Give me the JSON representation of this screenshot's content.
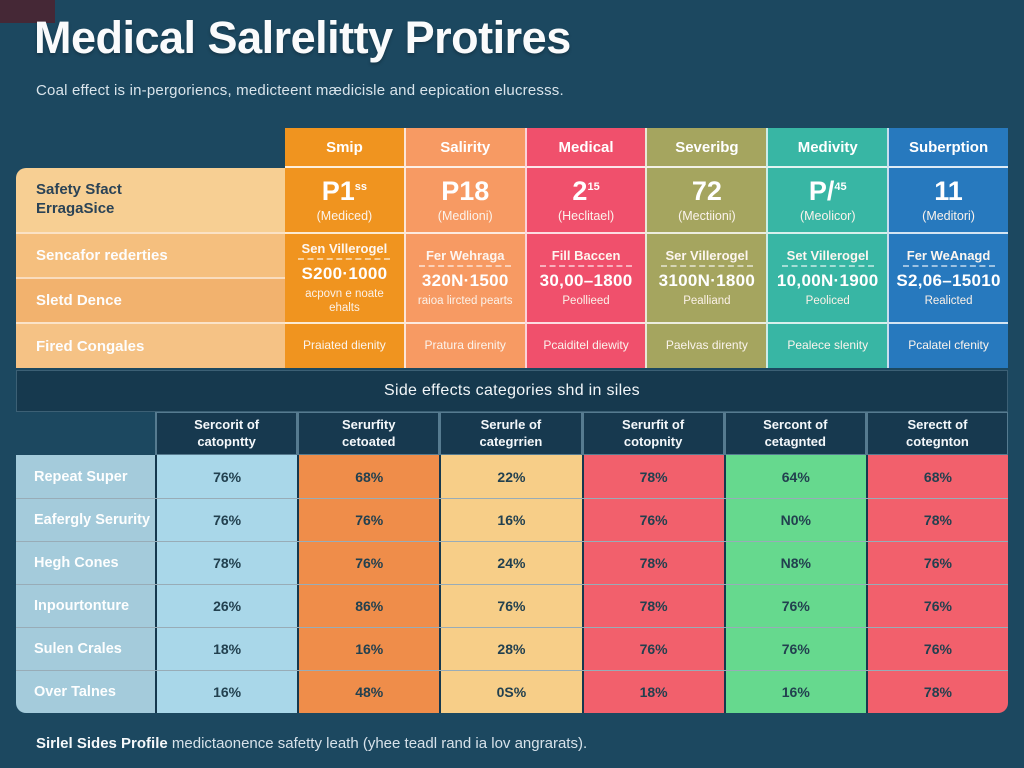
{
  "title": "Medical Salrelitty Protires",
  "subtitle": "Coal effect is in-pergoriencs, medicteent mædicisle and eepication elucresss.",
  "footer": {
    "bold": "Sirlel Sides Profile",
    "rest": " medictaonence safetty leath (yhee teadl rand ia lov angrarats)."
  },
  "colors": {
    "background": "#1C4860",
    "panel": "#15384E",
    "profile_columns": [
      "#F0941F",
      "#F79A63",
      "#F0506C",
      "#A5A55F",
      "#38B6A4",
      "#2779BE"
    ],
    "matrix_columns": [
      "#A9D7E9",
      "#EF8D4A",
      "#F7CE88",
      "#F2606C",
      "#66D98E",
      "#F2606C"
    ],
    "matrix_label_column": "#A4CBDB"
  },
  "profile_table": {
    "row_labels": [
      "Safety Sfact ErragaSice",
      "Sencafor rederties",
      "Sletd Dence",
      "Fired Congales"
    ],
    "columns": [
      {
        "header": "Smip",
        "value": "P1",
        "sup": "ss",
        "unit": "(Mediced)",
        "d_title": "Sen Villerogel",
        "d_value": "S200·1000",
        "d_note": "acpovn e noate ehalts",
        "f_note": "Praiated dienity"
      },
      {
        "header": "Salirity",
        "value": "P18",
        "sup": "",
        "unit": "(Medlioni)",
        "d_title": "Fer Wehraga",
        "d_value": "320N·1500",
        "d_note": "raioa lircted pearts",
        "f_note": "Pratura direnity"
      },
      {
        "header": "Medical",
        "value": "2",
        "sup": "15",
        "unit": "(Heclitael)",
        "d_title": "Fill Baccen",
        "d_value": "30,00–1800",
        "d_note": "Peollieed",
        "f_note": "Pcaiditel diewity"
      },
      {
        "header": "Severibg",
        "value": "72",
        "sup": "",
        "unit": "(Mectiioni)",
        "d_title": "Ser Villerogel",
        "d_value": "3100N·1800",
        "d_note": "Pealliand",
        "f_note": "Paelvas direnty"
      },
      {
        "header": "Medivity",
        "value": "P/",
        "sup": "45",
        "unit": "(Meolicor)",
        "d_title": "Set Villerogel",
        "d_value": "10,00N·1900",
        "d_note": "Peoliced",
        "f_note": "Pealece slenity"
      },
      {
        "header": "Suberption",
        "value": "11",
        "sup": "",
        "unit": "(Meditori)",
        "d_title": "Fer WeAnagd",
        "d_value": "S2,06–15010",
        "d_note": "Realicted",
        "f_note": "Pcalatel cfenity"
      }
    ]
  },
  "side_effects": {
    "band_title": "Side effects categories shd in siles",
    "headers": [
      {
        "l1": "Sercorit of",
        "l2": "catopntty"
      },
      {
        "l1": "Serurfity",
        "l2": "cetoated"
      },
      {
        "l1": "Serurle of",
        "l2": "categrrien"
      },
      {
        "l1": "Serurfit of",
        "l2": "cotopnity"
      },
      {
        "l1": "Sercont of",
        "l2": "cetagnted"
      },
      {
        "l1": "Serectt of",
        "l2": "cotegnton"
      }
    ],
    "rows": [
      {
        "label": "Repeat Super",
        "v0": "76%",
        "v1": "68%",
        "v2": "22%",
        "v3": "78%",
        "v4": "64%",
        "v5": "68%"
      },
      {
        "label": "Eafergly Serurity",
        "v0": "76%",
        "v1": "76%",
        "v2": "16%",
        "v3": "76%",
        "v4": "N0%",
        "v5": "78%"
      },
      {
        "label": "Hegh Cones",
        "v0": "78%",
        "v1": "76%",
        "v2": "24%",
        "v3": "78%",
        "v4": "N8%",
        "v5": "76%"
      },
      {
        "label": "Inpourtonture",
        "v0": "26%",
        "v1": "86%",
        "v2": "76%",
        "v3": "78%",
        "v4": "76%",
        "v5": "76%"
      },
      {
        "label": "Sulen Crales",
        "v0": "18%",
        "v1": "16%",
        "v2": "28%",
        "v3": "76%",
        "v4": "76%",
        "v5": "76%"
      },
      {
        "label": "Over Talnes",
        "v0": "16%",
        "v1": "48%",
        "v2": "0S%",
        "v3": "18%",
        "v4": "16%",
        "v5": "78%"
      }
    ]
  }
}
